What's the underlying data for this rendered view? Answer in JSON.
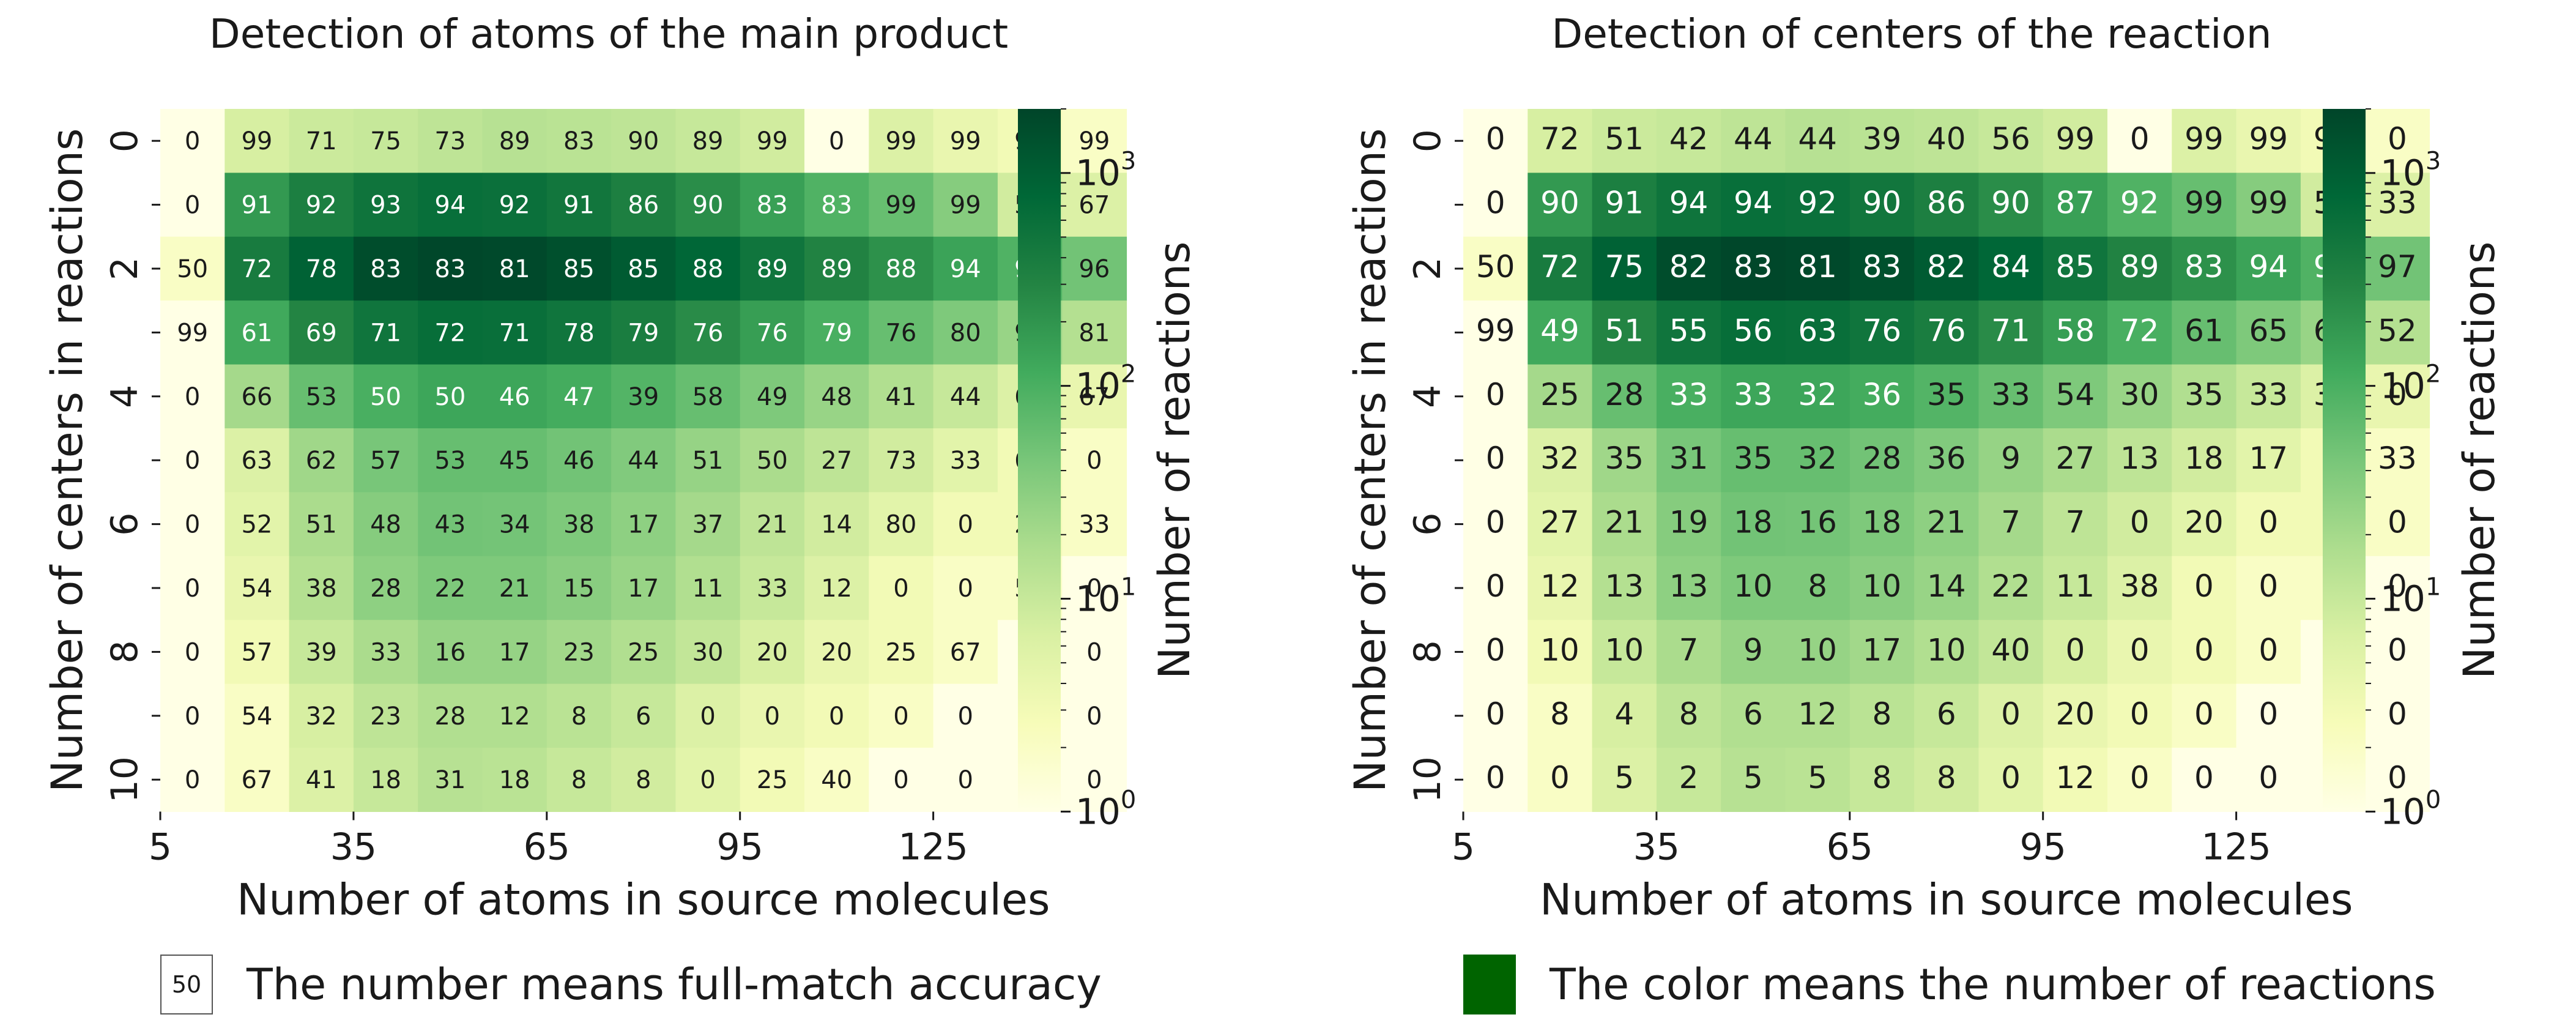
{
  "chart_data": [
    {
      "type": "heatmap",
      "title": "Detection of atoms of the main product",
      "xlabel": "Number of atoms in source molecules",
      "ylabel": "Number of centers in reactions",
      "x_tick_labels": [
        "5",
        "35",
        "65",
        "95",
        "125"
      ],
      "y_tick_labels": [
        "0",
        "2",
        "4",
        "6",
        "8",
        "10"
      ],
      "colorbar": {
        "label": "Number of reactions",
        "scale": "log",
        "range": [
          1,
          2000
        ],
        "ticks": [
          "10^0",
          "10^1",
          "10^2",
          "10^3"
        ]
      },
      "annotations": [
        [
          0,
          99,
          71,
          75,
          73,
          89,
          83,
          90,
          89,
          99,
          0,
          99,
          99,
          99,
          99
        ],
        [
          0,
          91,
          92,
          93,
          94,
          92,
          91,
          86,
          90,
          83,
          83,
          99,
          99,
          57,
          67
        ],
        [
          50,
          72,
          78,
          83,
          83,
          81,
          85,
          85,
          88,
          89,
          89,
          88,
          94,
          95,
          96
        ],
        [
          99,
          61,
          69,
          71,
          72,
          71,
          78,
          79,
          76,
          76,
          79,
          76,
          80,
          90,
          81
        ],
        [
          0,
          66,
          53,
          50,
          50,
          46,
          47,
          39,
          58,
          49,
          48,
          41,
          44,
          67,
          67
        ],
        [
          0,
          63,
          62,
          57,
          53,
          45,
          46,
          44,
          51,
          50,
          27,
          73,
          33,
          60,
          0
        ],
        [
          0,
          52,
          51,
          48,
          43,
          34,
          38,
          17,
          37,
          21,
          14,
          80,
          0,
          20,
          33
        ],
        [
          0,
          54,
          38,
          28,
          22,
          21,
          15,
          17,
          11,
          33,
          12,
          0,
          0,
          50,
          0
        ],
        [
          0,
          57,
          39,
          33,
          16,
          17,
          23,
          25,
          30,
          20,
          20,
          25,
          67,
          0,
          0
        ],
        [
          0,
          54,
          32,
          23,
          28,
          12,
          8,
          6,
          0,
          0,
          0,
          0,
          0,
          0,
          0
        ],
        [
          0,
          67,
          41,
          18,
          31,
          18,
          8,
          8,
          0,
          25,
          40,
          0,
          0,
          0,
          0
        ]
      ],
      "counts": [
        [
          1,
          7,
          9,
          10,
          12,
          14,
          13,
          12,
          10,
          8,
          1,
          6,
          4,
          3,
          2
        ],
        [
          1,
          180,
          360,
          520,
          620,
          580,
          480,
          350,
          240,
          150,
          90,
          60,
          35,
          8,
          6
        ],
        [
          2,
          400,
          900,
          1600,
          1900,
          1800,
          1500,
          1100,
          800,
          500,
          320,
          220,
          140,
          90,
          50
        ],
        [
          1,
          120,
          300,
          500,
          640,
          600,
          500,
          380,
          250,
          160,
          100,
          60,
          40,
          25,
          15
        ],
        [
          1,
          20,
          60,
          100,
          130,
          130,
          110,
          85,
          60,
          40,
          25,
          16,
          10,
          6,
          4
        ],
        [
          1,
          6,
          22,
          45,
          60,
          60,
          50,
          38,
          26,
          18,
          12,
          8,
          5,
          3,
          2
        ],
        [
          1,
          5,
          18,
          35,
          50,
          48,
          40,
          30,
          20,
          12,
          8,
          5,
          3,
          3,
          2
        ],
        [
          1,
          4,
          15,
          30,
          40,
          40,
          33,
          25,
          16,
          10,
          6,
          3,
          2,
          2,
          1
        ],
        [
          1,
          3,
          10,
          18,
          26,
          26,
          21,
          16,
          11,
          7,
          4,
          3,
          2,
          1,
          1
        ],
        [
          1,
          2,
          7,
          12,
          16,
          16,
          13,
          10,
          6,
          4,
          3,
          2,
          1,
          1,
          1
        ],
        [
          1,
          2,
          6,
          10,
          14,
          13,
          10,
          8,
          5,
          3,
          2,
          1,
          1,
          1,
          1
        ]
      ]
    },
    {
      "type": "heatmap",
      "title": "Detection of centers of the reaction",
      "xlabel": "Number of atoms in source molecules",
      "ylabel": "Number of centers in reactions",
      "x_tick_labels": [
        "5",
        "35",
        "65",
        "95",
        "125"
      ],
      "y_tick_labels": [
        "0",
        "2",
        "4",
        "6",
        "8",
        "10"
      ],
      "colorbar": {
        "label": "Number of reactions",
        "scale": "log",
        "range": [
          1,
          2000
        ],
        "ticks": [
          "10^0",
          "10^1",
          "10^2",
          "10^3"
        ]
      },
      "annotations": [
        [
          0,
          72,
          51,
          42,
          44,
          44,
          39,
          40,
          56,
          99,
          0,
          99,
          99,
          99,
          0
        ],
        [
          0,
          90,
          91,
          94,
          94,
          92,
          90,
          86,
          90,
          87,
          92,
          99,
          99,
          57,
          33
        ],
        [
          50,
          72,
          75,
          82,
          83,
          81,
          83,
          82,
          84,
          85,
          89,
          83,
          94,
          90,
          97
        ],
        [
          99,
          49,
          51,
          55,
          56,
          63,
          76,
          76,
          71,
          58,
          72,
          61,
          65,
          69,
          52
        ],
        [
          0,
          25,
          28,
          33,
          33,
          32,
          36,
          35,
          33,
          54,
          30,
          35,
          33,
          33,
          0
        ],
        [
          0,
          32,
          35,
          31,
          35,
          32,
          28,
          36,
          9,
          27,
          13,
          18,
          17,
          0,
          33
        ],
        [
          0,
          27,
          21,
          19,
          18,
          16,
          18,
          21,
          7,
          7,
          0,
          20,
          0,
          0,
          0
        ],
        [
          0,
          12,
          13,
          13,
          10,
          8,
          10,
          14,
          22,
          11,
          38,
          0,
          0,
          0,
          0
        ],
        [
          0,
          10,
          10,
          7,
          9,
          10,
          17,
          10,
          40,
          0,
          0,
          0,
          0,
          0,
          0
        ],
        [
          0,
          8,
          4,
          8,
          6,
          12,
          8,
          6,
          0,
          20,
          0,
          0,
          0,
          0,
          0
        ],
        [
          0,
          0,
          5,
          2,
          5,
          5,
          8,
          8,
          0,
          12,
          0,
          0,
          0,
          0,
          0
        ]
      ],
      "counts": [
        [
          1,
          7,
          9,
          10,
          12,
          14,
          13,
          12,
          10,
          8,
          1,
          6,
          4,
          3,
          2
        ],
        [
          1,
          180,
          360,
          520,
          620,
          580,
          480,
          350,
          240,
          150,
          90,
          60,
          35,
          8,
          6
        ],
        [
          2,
          400,
          900,
          1600,
          1900,
          1800,
          1500,
          1100,
          800,
          500,
          320,
          220,
          140,
          90,
          50
        ],
        [
          1,
          120,
          300,
          500,
          640,
          600,
          500,
          380,
          250,
          160,
          100,
          60,
          40,
          25,
          15
        ],
        [
          1,
          20,
          60,
          100,
          130,
          130,
          110,
          85,
          60,
          40,
          25,
          16,
          10,
          6,
          4
        ],
        [
          1,
          6,
          22,
          45,
          60,
          60,
          50,
          38,
          26,
          18,
          12,
          8,
          5,
          3,
          2
        ],
        [
          1,
          5,
          18,
          35,
          50,
          48,
          40,
          30,
          20,
          12,
          8,
          5,
          3,
          3,
          2
        ],
        [
          1,
          4,
          15,
          30,
          40,
          40,
          33,
          25,
          16,
          10,
          6,
          3,
          2,
          2,
          1
        ],
        [
          1,
          3,
          10,
          18,
          26,
          26,
          21,
          16,
          11,
          7,
          4,
          3,
          2,
          1,
          1
        ],
        [
          1,
          2,
          7,
          12,
          16,
          16,
          13,
          10,
          6,
          4,
          3,
          2,
          1,
          1,
          1
        ],
        [
          1,
          2,
          6,
          10,
          14,
          13,
          10,
          8,
          5,
          3,
          2,
          1,
          1,
          1,
          1
        ]
      ]
    }
  ],
  "legend": {
    "number_sample": "50",
    "number_text": "The number means full-match accuracy",
    "color_sample": "#006400",
    "color_text": "The color means the number of reactions"
  }
}
